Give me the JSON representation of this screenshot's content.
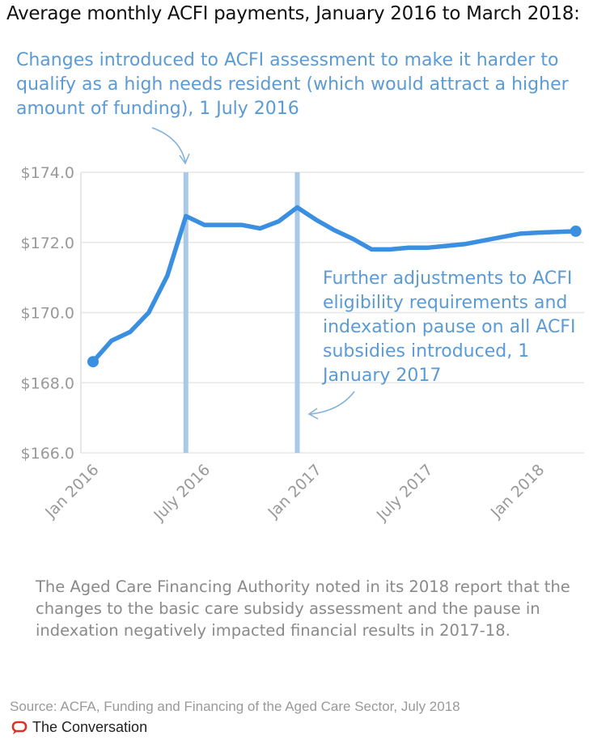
{
  "title": "Average monthly ACFI payments, January 2016 to March 2018:",
  "annotations": [
    "Changes introduced to ACFI assessment to make it harder to qualify as a high needs resident (which would attract a higher amount of funding), 1 July 2016",
    "Further adjustments to ACFI eligibility requirements and indexation pause on all ACFI subsidies introduced, 1 January 2017"
  ],
  "note": "The Aged Care Financing Authority noted in its 2018 report that the changes to the basic care subsidy assessment and the pause in indexation negatively impacted financial results in 2017-18.",
  "source": "Source: ACFA, Funding and Financing of the Aged Care Sector, July 2018",
  "brand": "The Conversation",
  "colors": {
    "line": "#3a8fe0",
    "marker": "#a9c9e6",
    "annotation": "#5b9bd5",
    "brand": "#d8352a"
  },
  "chart_data": {
    "type": "line",
    "title": "Average monthly ACFI payments, January 2016 to March 2018:",
    "xlabel": "",
    "ylabel": "",
    "ylim": [
      166,
      174
    ],
    "yticks": [
      166,
      168,
      170,
      172,
      174
    ],
    "ytick_labels": [
      "$166.0",
      "$168.0",
      "$170.0",
      "$172.0",
      "$174.0"
    ],
    "xticks": [
      0,
      6,
      12,
      18,
      24
    ],
    "xtick_labels": [
      "Jan 2016",
      "July 2016",
      "Jan 2017",
      "July 2017",
      "Jan 2018"
    ],
    "x": [
      0,
      1,
      2,
      3,
      4,
      5,
      6,
      7,
      8,
      9,
      10,
      11,
      12,
      13,
      14,
      15,
      16,
      17,
      18,
      19,
      20,
      21,
      22,
      23,
      24,
      25,
      26
    ],
    "series": [
      {
        "name": "Average monthly ACFI payment",
        "values": [
          168.6,
          169.2,
          169.45,
          170.0,
          171.05,
          172.75,
          172.5,
          172.5,
          172.5,
          172.4,
          172.6,
          173.0,
          172.65,
          172.35,
          172.1,
          171.8,
          171.8,
          171.85,
          171.85,
          171.9,
          171.95,
          172.05,
          172.15,
          172.25,
          172.28,
          172.3,
          172.32
        ]
      }
    ],
    "event_markers": [
      5,
      11
    ],
    "grid": true
  }
}
